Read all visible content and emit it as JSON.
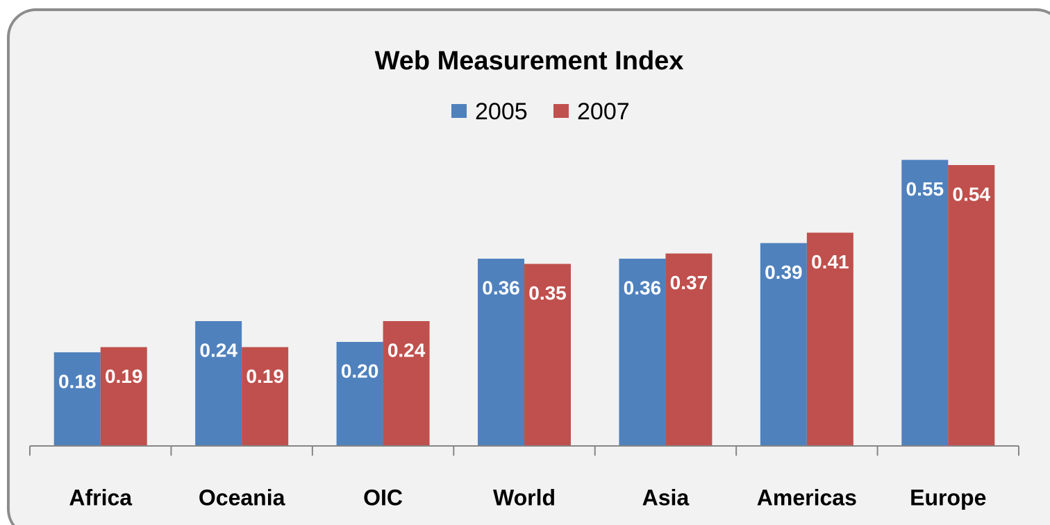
{
  "chart_data": {
    "type": "bar",
    "title": "Web Measurement Index",
    "categories": [
      "Africa",
      "Oceania",
      "OIC",
      "World",
      "Asia",
      "Americas",
      "Europe"
    ],
    "series": [
      {
        "name": "2005",
        "color": "#4f81bd",
        "values": [
          0.18,
          0.24,
          0.2,
          0.36,
          0.36,
          0.39,
          0.55
        ],
        "value_labels": [
          "0.18",
          "0.24",
          "0.20",
          "0.36",
          "0.36",
          "0.39",
          "0.55"
        ]
      },
      {
        "name": "2007",
        "color": "#c0504d",
        "values": [
          0.19,
          0.19,
          0.24,
          0.35,
          0.37,
          0.41,
          0.54
        ],
        "value_labels": [
          "0.19",
          "0.19",
          "0.24",
          "0.35",
          "0.37",
          "0.41",
          "0.54"
        ]
      }
    ],
    "ylim": [
      0,
      0.6
    ],
    "grid": false,
    "legend": "top"
  }
}
